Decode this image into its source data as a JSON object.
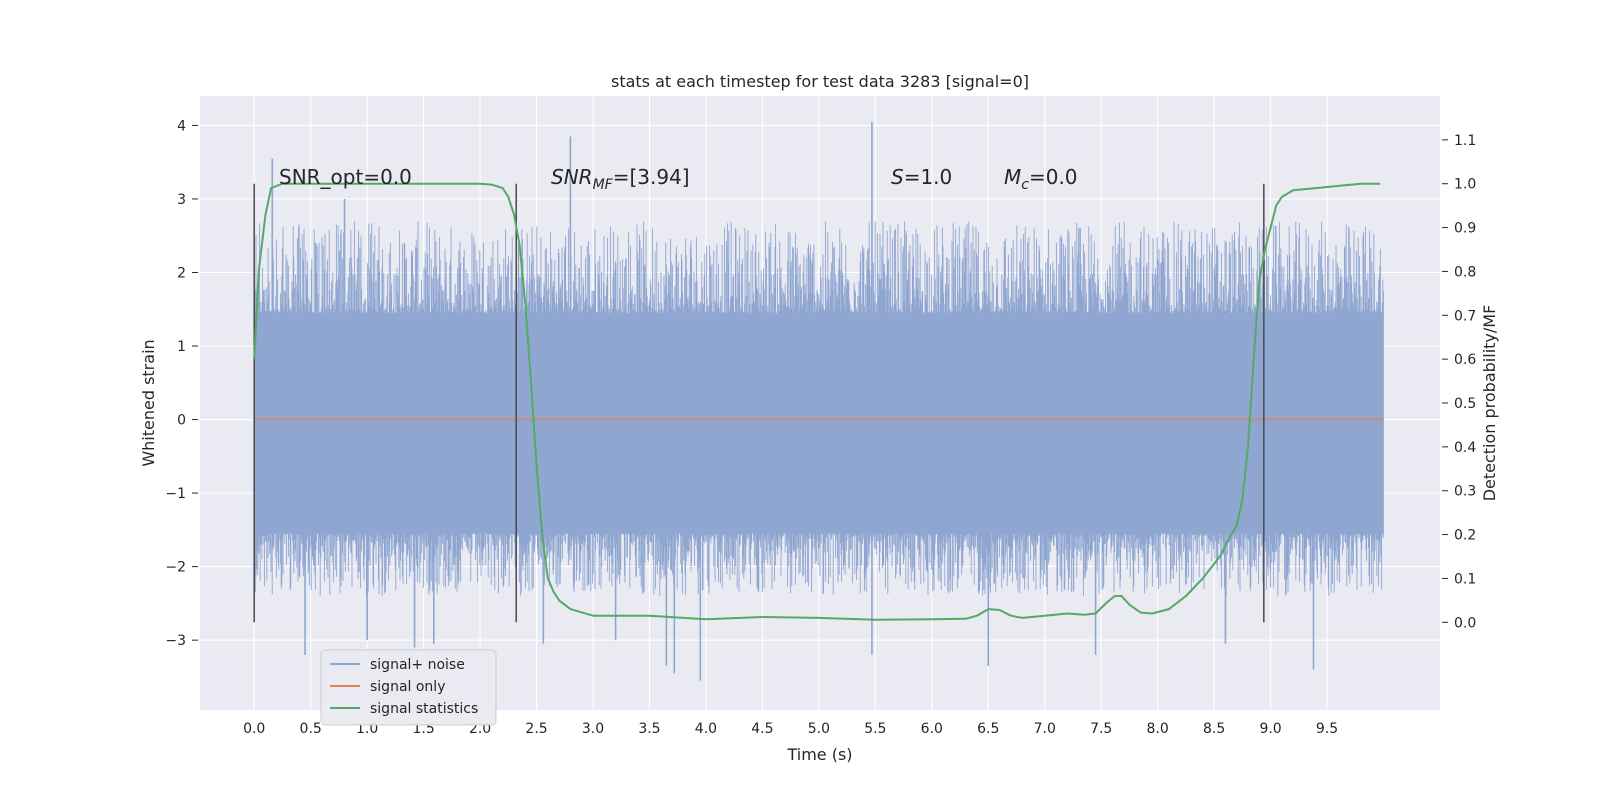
{
  "chart_data": {
    "type": "line",
    "title": "stats at each timestep for test data 3283 [signal=0]",
    "xlabel": "Time (s)",
    "ylabel": "Whitened strain",
    "y2label": "Detection probability/MF",
    "xlim": [
      -0.48,
      10.5
    ],
    "ylim": [
      -3.95,
      4.4
    ],
    "y2lim": [
      -0.2,
      1.2
    ],
    "x_ticks": [
      0.0,
      0.5,
      1.0,
      1.5,
      2.0,
      2.5,
      3.0,
      3.5,
      4.0,
      4.5,
      5.0,
      5.5,
      6.0,
      6.5,
      7.0,
      7.5,
      8.0,
      8.5,
      9.0,
      9.5
    ],
    "y_ticks": [
      -3,
      -2,
      -1,
      0,
      1,
      2,
      3,
      4
    ],
    "y2_ticks": [
      0.0,
      0.1,
      0.2,
      0.3,
      0.4,
      0.5,
      0.6,
      0.7,
      0.8,
      0.9,
      1.0,
      1.1
    ],
    "grid": true,
    "legend_position": "lower-left",
    "annotations": {
      "snr_opt": "SNR_opt=0.0",
      "snr_mf_prefix": "SNR",
      "snr_mf_sub": "MF",
      "snr_mf_value": "=[3.94]",
      "s_label": "S",
      "s_value": "=1.0",
      "mc_label": "M",
      "mc_sub": "c",
      "mc_value": "=0.0"
    },
    "markers": {
      "x": [
        0.0,
        2.32,
        8.94
      ],
      "y2_range": [
        0.0,
        1.0
      ]
    },
    "series": [
      {
        "name": "signal+ noise",
        "color": "#8fa6d1",
        "envelope": {
          "core_range": [
            -1.55,
            1.45
          ],
          "typical_peaks": [
            2.6,
            -2.3
          ],
          "time_range": [
            0.0,
            10.0
          ]
        },
        "spikes": [
          [
            0.16,
            3.55
          ],
          [
            0.45,
            -3.2
          ],
          [
            0.8,
            3.0
          ],
          [
            1.0,
            -3.0
          ],
          [
            1.42,
            -3.1
          ],
          [
            1.59,
            -3.05
          ],
          [
            2.56,
            -3.05
          ],
          [
            2.8,
            3.85
          ],
          [
            3.2,
            -3.0
          ],
          [
            3.65,
            -3.35
          ],
          [
            3.72,
            -3.45
          ],
          [
            3.95,
            -3.55
          ],
          [
            5.47,
            4.05
          ],
          [
            5.47,
            -3.2
          ],
          [
            6.5,
            -3.35
          ],
          [
            8.6,
            -3.05
          ],
          [
            9.38,
            -3.4
          ],
          [
            7.45,
            -3.2
          ]
        ]
      },
      {
        "name": "signal only",
        "color": "#dd8452",
        "x": [
          0.0,
          10.0
        ],
        "y": [
          0.0,
          0.0
        ]
      },
      {
        "name": "signal statistics",
        "color": "#55a868",
        "axis": "y2",
        "x": [
          0.0,
          0.04,
          0.1,
          0.15,
          0.25,
          0.5,
          1.0,
          1.5,
          2.0,
          2.1,
          2.2,
          2.25,
          2.3,
          2.35,
          2.4,
          2.45,
          2.5,
          2.55,
          2.6,
          2.65,
          2.7,
          2.8,
          3.0,
          3.5,
          4.0,
          4.5,
          5.0,
          5.5,
          6.0,
          6.3,
          6.4,
          6.5,
          6.6,
          6.7,
          6.8,
          7.0,
          7.2,
          7.35,
          7.45,
          7.55,
          7.62,
          7.68,
          7.75,
          7.85,
          7.95,
          8.1,
          8.25,
          8.4,
          8.55,
          8.65,
          8.7,
          8.75,
          8.8,
          8.85,
          8.9,
          8.95,
          9.0,
          9.05,
          9.1,
          9.2,
          9.4,
          9.6,
          9.8,
          9.97
        ],
        "y": [
          0.6,
          0.8,
          0.93,
          0.99,
          1.0,
          1.0,
          1.0,
          1.0,
          1.0,
          0.998,
          0.99,
          0.97,
          0.93,
          0.86,
          0.73,
          0.55,
          0.36,
          0.2,
          0.1,
          0.07,
          0.05,
          0.03,
          0.015,
          0.015,
          0.007,
          0.012,
          0.01,
          0.006,
          0.007,
          0.008,
          0.015,
          0.03,
          0.028,
          0.015,
          0.01,
          0.015,
          0.02,
          0.017,
          0.02,
          0.045,
          0.06,
          0.06,
          0.04,
          0.022,
          0.02,
          0.03,
          0.06,
          0.1,
          0.15,
          0.2,
          0.22,
          0.28,
          0.4,
          0.6,
          0.78,
          0.85,
          0.9,
          0.95,
          0.97,
          0.985,
          0.99,
          0.995,
          1.0,
          1.0
        ]
      }
    ]
  }
}
